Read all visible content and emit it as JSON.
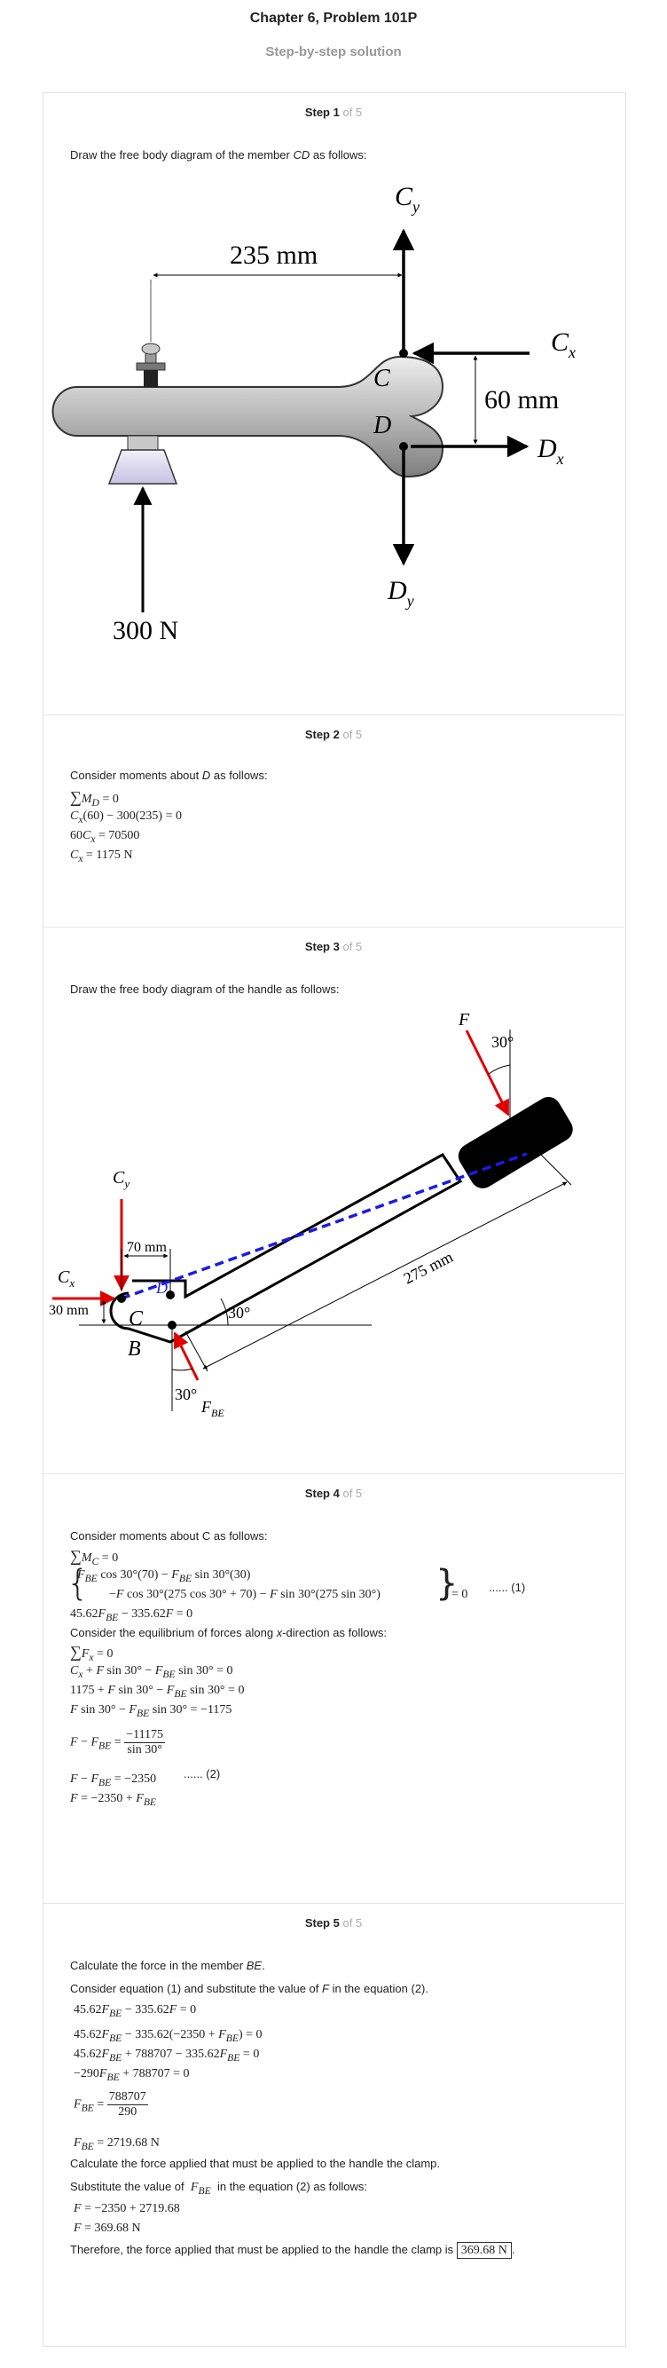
{
  "header": {
    "title": "Chapter 6, Problem 101P",
    "subtitle": "Step-by-step solution"
  },
  "steps": [
    {
      "label": "Step 1",
      "of": "of 5",
      "text": "Draw the free body diagram of the member CD as follows:",
      "figure": {
        "dim_top": "235 mm",
        "dim_right": "60 mm",
        "force": "300 N",
        "cy": "C",
        "cy_sub": "y",
        "cx": "C",
        "cx_sub": "x",
        "dx": "D",
        "dx_sub": "x",
        "dy": "D",
        "dy_sub": "y",
        "point_c": "C",
        "point_d": "D"
      }
    },
    {
      "label": "Step 2",
      "of": "of 5",
      "text": "Consider moments about D as follows:",
      "eqs": [
        "∑M_D = 0",
        "C_x(60) − 300(235) = 0",
        "60C_x = 70500",
        "C_x = 1175 N"
      ]
    },
    {
      "label": "Step 3",
      "of": "of 5",
      "text": "Draw the free body diagram of the handle as follows:",
      "figure": {
        "f": "F",
        "angle_top": "30°",
        "cy": "C",
        "cy_sub": "y",
        "cx": "C",
        "cx_sub": "x",
        "dim_70": "70 mm",
        "dim_30": "30 mm",
        "point_c": "C",
        "point_d": "D",
        "point_b": "B",
        "angle_mid": "30°",
        "angle_bot": "30°",
        "fbe": "F",
        "fbe_sub": "BE",
        "dim_275": "275 mm"
      }
    },
    {
      "label": "Step 4",
      "of": "of 5",
      "text1": "Consider moments about C as follows:",
      "eq_tag1": "...... (1)",
      "text2": "Consider the equilibrium of forces along x-direction as follows:",
      "eq_tag2": "...... (2)"
    },
    {
      "label": "Step 5",
      "of": "of 5",
      "text1": "Calculate the force in the member BE.",
      "text2": "Consider equation (1) and substitute the value of F in the equation (2).",
      "text3": "Calculate the force applied that must be applied to the handle the clamp.",
      "text4_a": "Substitute the value of",
      "text4_b": "in the equation (2) as follows:",
      "final_text": "Therefore, the force applied that must be applied to the handle the clamp is",
      "answer": "369.68 N"
    }
  ]
}
